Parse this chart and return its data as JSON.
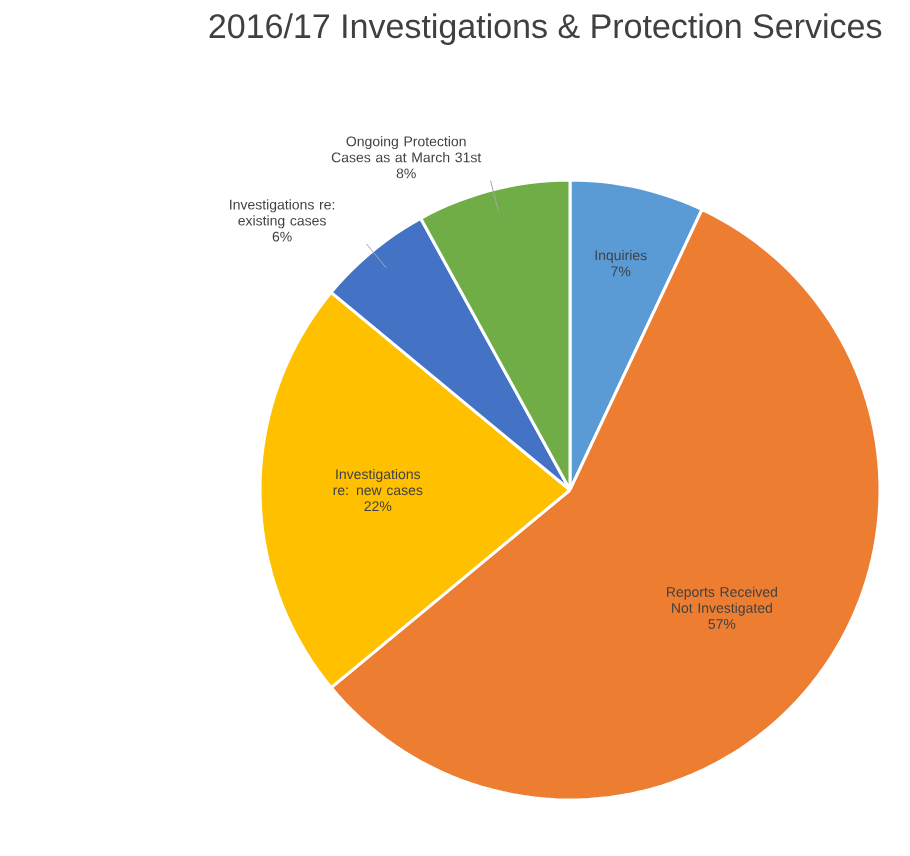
{
  "chart_data": {
    "type": "pie",
    "title": "2016/17 Investigations & Protection Services",
    "categories": [
      "Inquiries",
      "Reports Received Not Investigated",
      "Investigations re: new cases",
      "Investigations re: existing cases",
      "Ongoing Protection Cases as at March 31st"
    ],
    "values": [
      7,
      57,
      22,
      6,
      8
    ],
    "value_labels": [
      "7%",
      "57%",
      "22%",
      "6%",
      "8%"
    ],
    "colors": [
      "#5b9bd5",
      "#ed7d31",
      "#ffc000",
      "#4472c4",
      "#70ad47"
    ],
    "legend": false
  }
}
